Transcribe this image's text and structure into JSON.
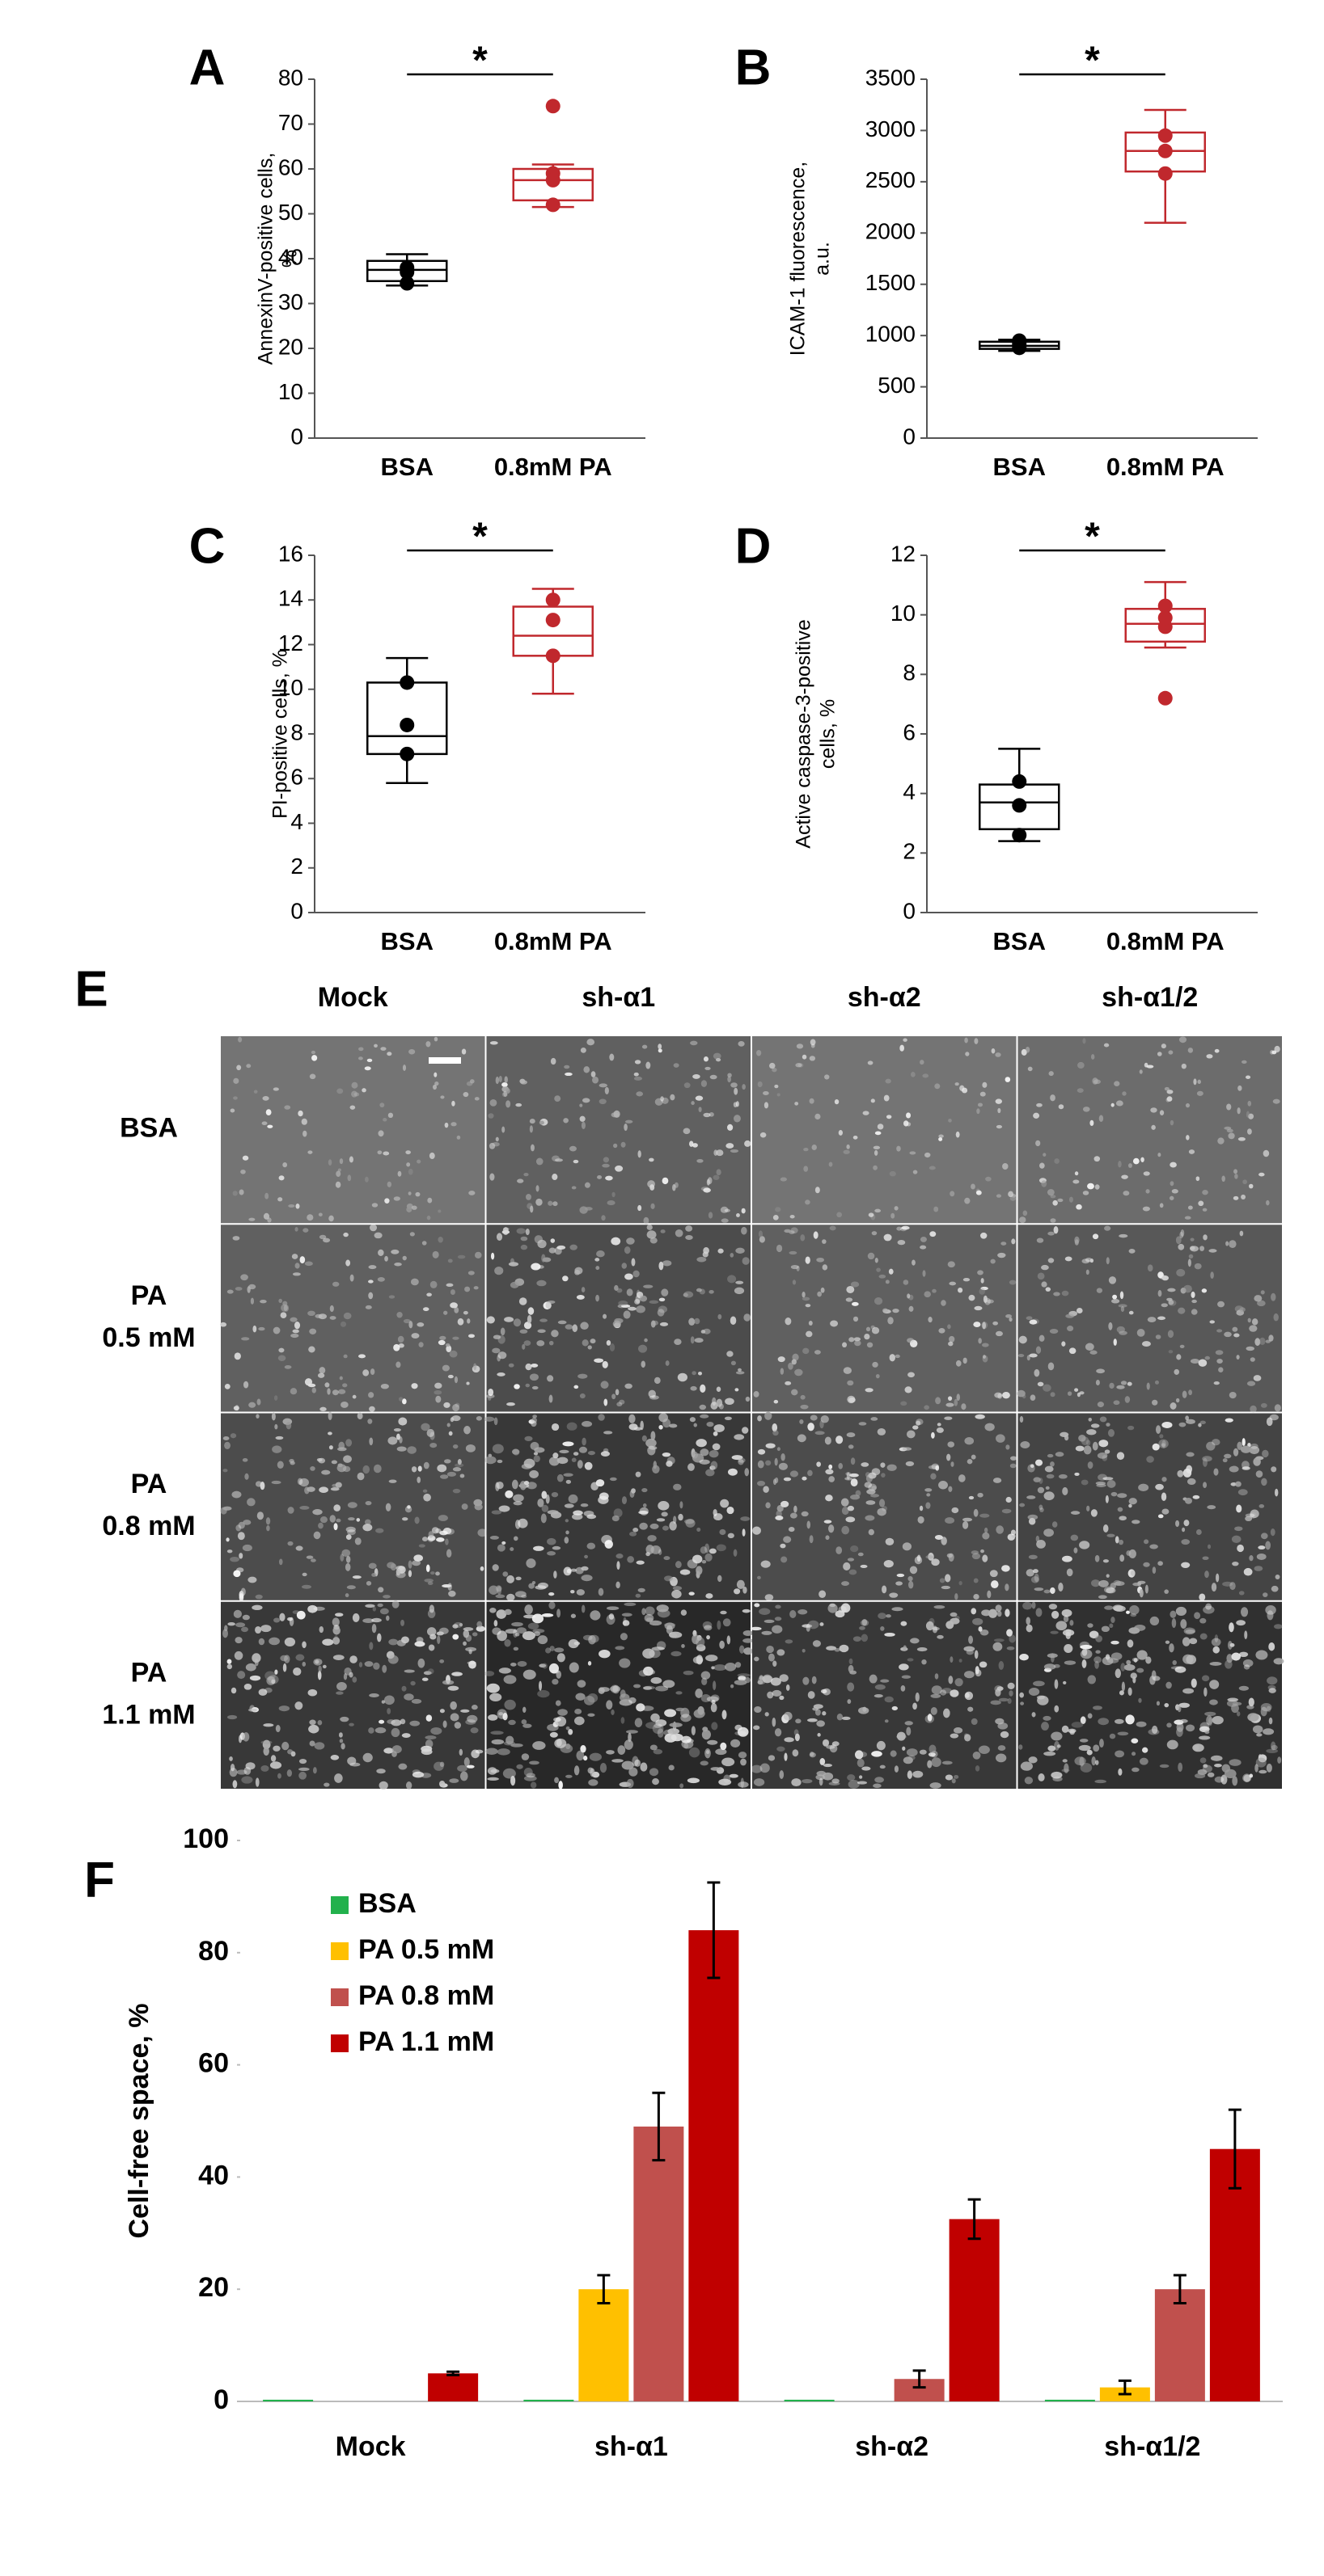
{
  "chart_data": [
    {
      "type": "box",
      "panel_label": "A",
      "ylabel": [
        "AnnexinV-positive cells,",
        "%"
      ],
      "categories": [
        "BSA",
        "0.8mM PA"
      ],
      "colors": [
        "#000000",
        "#c0282d"
      ],
      "boxes": [
        {
          "whisker_low": 34,
          "q1": 35,
          "median": 37.5,
          "q3": 39.5,
          "whisker_high": 41,
          "points": [
            34.5,
            37,
            38
          ]
        },
        {
          "whisker_low": 51.5,
          "q1": 53,
          "median": 57.5,
          "q3": 60,
          "whisker_high": 61,
          "points": [
            74,
            59,
            57.5,
            52
          ]
        }
      ],
      "ylim": [
        0,
        80
      ],
      "yticks": [
        0,
        10,
        20,
        30,
        40,
        50,
        60,
        70,
        80
      ],
      "annotation": "*"
    },
    {
      "type": "box",
      "panel_label": "B",
      "ylabel": [
        "ICAM-1 fluorescence,",
        "a.u."
      ],
      "categories": [
        "BSA",
        "0.8mM PA"
      ],
      "colors": [
        "#000000",
        "#c0282d"
      ],
      "boxes": [
        {
          "whisker_low": 850,
          "q1": 870,
          "median": 900,
          "q3": 940,
          "whisker_high": 960,
          "points": [
            880,
            920,
            950
          ]
        },
        {
          "whisker_low": 2100,
          "q1": 2600,
          "median": 2800,
          "q3": 2980,
          "whisker_high": 3200,
          "points": [
            2950,
            2800,
            2580
          ]
        }
      ],
      "ylim": [
        0,
        3500
      ],
      "yticks": [
        0,
        500,
        1000,
        1500,
        2000,
        2500,
        3000,
        3500
      ],
      "annotation": "*"
    },
    {
      "type": "box",
      "panel_label": "C",
      "ylabel": [
        "PI-positive cells, %"
      ],
      "categories": [
        "BSA",
        "0.8mM PA"
      ],
      "colors": [
        "#000000",
        "#c0282d"
      ],
      "boxes": [
        {
          "whisker_low": 5.8,
          "q1": 7.1,
          "median": 7.9,
          "q3": 10.3,
          "whisker_high": 11.4,
          "points": [
            7.1,
            8.4,
            10.3
          ]
        },
        {
          "whisker_low": 9.8,
          "q1": 11.5,
          "median": 12.4,
          "q3": 13.7,
          "whisker_high": 14.5,
          "points": [
            11.5,
            13.1,
            14.0
          ]
        }
      ],
      "ylim": [
        0,
        16
      ],
      "yticks": [
        0,
        2,
        4,
        6,
        8,
        10,
        12,
        14,
        16
      ],
      "annotation": "*"
    },
    {
      "type": "box",
      "panel_label": "D",
      "ylabel": [
        "Active caspase-3-positive",
        "cells, %"
      ],
      "categories": [
        "BSA",
        "0.8mM PA"
      ],
      "colors": [
        "#000000",
        "#c0282d"
      ],
      "boxes": [
        {
          "whisker_low": 2.4,
          "q1": 2.8,
          "median": 3.7,
          "q3": 4.3,
          "whisker_high": 5.5,
          "points": [
            2.6,
            3.6,
            4.4
          ]
        },
        {
          "whisker_low": 8.9,
          "q1": 9.1,
          "median": 9.7,
          "q3": 10.2,
          "whisker_high": 11.1,
          "points": [
            7.2,
            9.6,
            9.9,
            10.3
          ]
        }
      ],
      "ylim": [
        0,
        12
      ],
      "yticks": [
        0,
        2,
        4,
        6,
        8,
        10,
        12
      ],
      "annotation": "*"
    },
    {
      "type": "bar",
      "panel_label": "F",
      "ylabel": "Cell-free space, %",
      "categories": [
        "Mock",
        "sh-α1",
        "sh-α2",
        "sh-α1/2"
      ],
      "series": [
        {
          "name": "BSA",
          "color": "#22b14c",
          "values": [
            0.3,
            0.3,
            0.3,
            0.3
          ],
          "errors": [
            0,
            0,
            0,
            0
          ]
        },
        {
          "name": "PA 0.5 mM",
          "color": "#ffc000",
          "values": [
            0,
            20,
            0,
            2.5
          ],
          "errors": [
            0,
            2.5,
            0,
            1.2
          ]
        },
        {
          "name": "PA 0.8 mM",
          "color": "#c0504d",
          "values": [
            0,
            49,
            4,
            20
          ],
          "errors": [
            0,
            6,
            1.5,
            2.5
          ]
        },
        {
          "name": "PA 1.1 mM",
          "color": "#c00000",
          "values": [
            5,
            84,
            32.5,
            45
          ],
          "errors": [
            0.3,
            8.5,
            3.5,
            7
          ]
        }
      ],
      "ylim": [
        0,
        100
      ],
      "yticks": [
        0,
        20,
        40,
        60,
        80,
        100
      ],
      "legend": "upper left"
    }
  ],
  "image_grid": {
    "panel_label": "E",
    "columns": [
      "Mock",
      "sh-α1",
      "sh-α2",
      "sh-α1/2"
    ],
    "rows": [
      [
        "BSA"
      ],
      [
        "PA",
        "0.5 mM"
      ],
      [
        "PA",
        "0.8 mM"
      ],
      [
        "PA",
        "1.1 mM"
      ]
    ]
  }
}
